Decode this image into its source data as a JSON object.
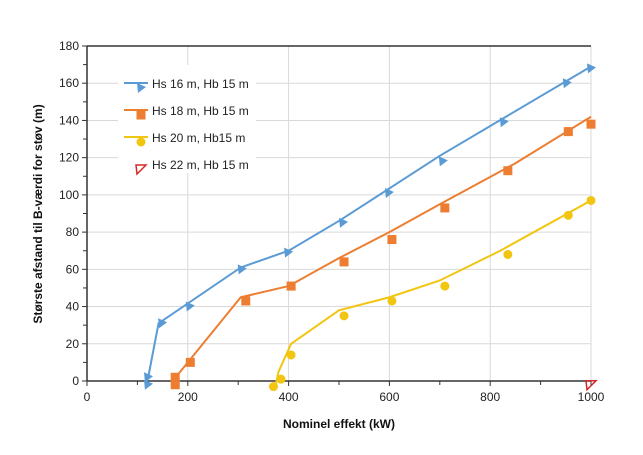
{
  "chart_data": {
    "type": "line",
    "xlabel": "Nominel effekt (kW)",
    "ylabel": "Største afstand til B-værdi for støv (m)",
    "xlim": [
      0,
      1000
    ],
    "ylim": [
      0,
      180
    ],
    "xticks": [
      0,
      200,
      400,
      600,
      800,
      1000
    ],
    "yticks": [
      0,
      20,
      40,
      60,
      80,
      100,
      120,
      140,
      160,
      180
    ],
    "grid": true,
    "legend_position": "top-left",
    "series": [
      {
        "name": "Hs  16 m, Hb 15 m",
        "color": "#5b9bd5",
        "marker": "triangle",
        "line": [
          [
            120,
            0
          ],
          [
            142,
            31
          ],
          [
            305,
            61
          ],
          [
            400,
            70
          ],
          [
            500,
            86
          ],
          [
            700,
            121
          ],
          [
            1000,
            169
          ]
        ],
        "points": [
          [
            121,
            2
          ],
          [
            121,
            -2
          ],
          [
            149,
            31
          ],
          [
            204,
            40
          ],
          [
            307,
            60
          ],
          [
            399,
            69
          ],
          [
            508,
            85
          ],
          [
            599,
            101
          ],
          [
            706,
            118
          ],
          [
            827,
            139
          ],
          [
            952,
            160
          ],
          [
            1000,
            168
          ]
        ]
      },
      {
        "name": "Hs 18 m, Hb 15 m",
        "color": "#ed7d31",
        "marker": "square",
        "line": [
          [
            170,
            0
          ],
          [
            305,
            45
          ],
          [
            400,
            51
          ],
          [
            500,
            66
          ],
          [
            600,
            80
          ],
          [
            700,
            95
          ],
          [
            850,
            117
          ],
          [
            1000,
            142
          ]
        ],
        "points": [
          [
            175,
            2
          ],
          [
            175,
            -2
          ],
          [
            205,
            10
          ],
          [
            315,
            43
          ],
          [
            405,
            51
          ],
          [
            510,
            64
          ],
          [
            605,
            76
          ],
          [
            710,
            93
          ],
          [
            835,
            113
          ],
          [
            955,
            134
          ],
          [
            1000,
            138
          ]
        ]
      },
      {
        "name": "Hs  20 m, Hb15 m",
        "color": "#f2c511",
        "marker": "circle",
        "line": [
          [
            372,
            -5
          ],
          [
            380,
            5
          ],
          [
            405,
            20
          ],
          [
            500,
            38
          ],
          [
            600,
            45
          ],
          [
            700,
            54
          ],
          [
            820,
            70
          ],
          [
            1000,
            97
          ]
        ],
        "points": [
          [
            370,
            -3
          ],
          [
            385,
            1
          ],
          [
            405,
            14
          ],
          [
            510,
            35
          ],
          [
            605,
            43
          ],
          [
            710,
            51
          ],
          [
            835,
            68
          ],
          [
            955,
            89
          ],
          [
            1000,
            97
          ]
        ]
      },
      {
        "name": "Hs  22 m, Hb 15 m",
        "color": "#d62828",
        "marker": "open-triangle",
        "line": [],
        "points": [
          [
            1000,
            -2
          ]
        ]
      }
    ]
  }
}
